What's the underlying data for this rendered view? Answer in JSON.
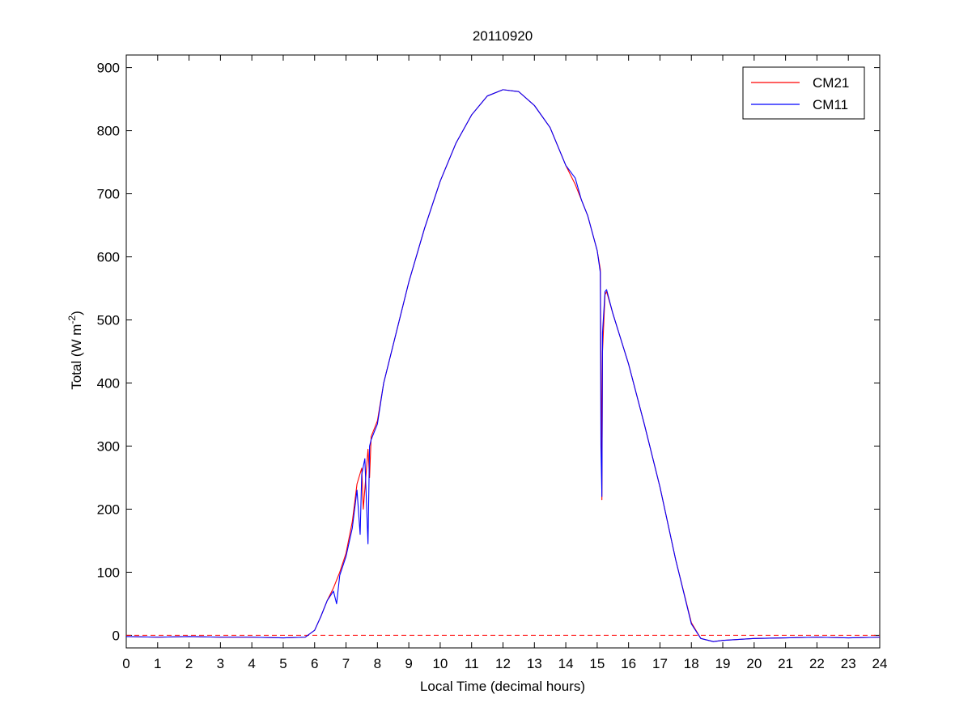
{
  "chart_data": {
    "type": "line",
    "title": "20110920",
    "xlabel": "Local Time (decimal hours)",
    "ylabel_main": "Total (W m",
    "ylabel_sup": "-2",
    "ylabel_close": ")",
    "xlim": [
      0,
      24
    ],
    "ylim": [
      -20,
      920
    ],
    "xticks": [
      0,
      1,
      2,
      3,
      4,
      5,
      6,
      7,
      8,
      9,
      10,
      11,
      12,
      13,
      14,
      15,
      16,
      17,
      18,
      19,
      20,
      21,
      22,
      23,
      24
    ],
    "yticks": [
      0,
      100,
      200,
      300,
      400,
      500,
      600,
      700,
      800,
      900
    ],
    "grid": false,
    "legend_position": "top-right",
    "reference_line": {
      "y": 0,
      "style": "dashed",
      "color": "#ff0000"
    },
    "series": [
      {
        "name": "CM21",
        "color": "#ff0000",
        "points": [
          [
            0,
            -2
          ],
          [
            1,
            -3
          ],
          [
            2,
            -2
          ],
          [
            3,
            -3
          ],
          [
            4,
            -3
          ],
          [
            5,
            -4
          ],
          [
            5.7,
            -3
          ],
          [
            6,
            8
          ],
          [
            6.2,
            30
          ],
          [
            6.4,
            55
          ],
          [
            6.6,
            75
          ],
          [
            6.8,
            100
          ],
          [
            7.0,
            130
          ],
          [
            7.2,
            180
          ],
          [
            7.35,
            240
          ],
          [
            7.5,
            265
          ],
          [
            7.55,
            200
          ],
          [
            7.7,
            295
          ],
          [
            7.75,
            250
          ],
          [
            7.8,
            315
          ],
          [
            8.0,
            340
          ],
          [
            8.2,
            400
          ],
          [
            8.5,
            460
          ],
          [
            9.0,
            560
          ],
          [
            9.5,
            645
          ],
          [
            10,
            720
          ],
          [
            10.5,
            780
          ],
          [
            11,
            825
          ],
          [
            11.5,
            855
          ],
          [
            12,
            865
          ],
          [
            12.5,
            862
          ],
          [
            13,
            840
          ],
          [
            13.5,
            805
          ],
          [
            14,
            745
          ],
          [
            14.3,
            715
          ],
          [
            14.5,
            690
          ],
          [
            14.7,
            665
          ],
          [
            15,
            610
          ],
          [
            15.1,
            580
          ],
          [
            15.13,
            380
          ],
          [
            15.15,
            215
          ],
          [
            15.17,
            450
          ],
          [
            15.25,
            540
          ],
          [
            15.3,
            545
          ],
          [
            15.5,
            510
          ],
          [
            16,
            430
          ],
          [
            16.5,
            335
          ],
          [
            17,
            235
          ],
          [
            17.5,
            120
          ],
          [
            18,
            20
          ],
          [
            18.3,
            -5
          ],
          [
            18.7,
            -10
          ],
          [
            19,
            -8
          ],
          [
            20,
            -5
          ],
          [
            21,
            -4
          ],
          [
            22,
            -3
          ],
          [
            23,
            -4
          ],
          [
            24,
            -3
          ]
        ]
      },
      {
        "name": "CM11",
        "color": "#0000ff",
        "points": [
          [
            0,
            -2
          ],
          [
            1,
            -3
          ],
          [
            2,
            -2
          ],
          [
            3,
            -3
          ],
          [
            4,
            -3
          ],
          [
            5,
            -4
          ],
          [
            5.7,
            -3
          ],
          [
            6,
            8
          ],
          [
            6.2,
            30
          ],
          [
            6.4,
            55
          ],
          [
            6.6,
            70
          ],
          [
            6.7,
            50
          ],
          [
            6.8,
            95
          ],
          [
            7.0,
            125
          ],
          [
            7.2,
            170
          ],
          [
            7.35,
            230
          ],
          [
            7.45,
            160
          ],
          [
            7.5,
            255
          ],
          [
            7.6,
            280
          ],
          [
            7.7,
            145
          ],
          [
            7.75,
            300
          ],
          [
            7.8,
            310
          ],
          [
            8.0,
            335
          ],
          [
            8.2,
            400
          ],
          [
            8.5,
            460
          ],
          [
            9.0,
            560
          ],
          [
            9.5,
            645
          ],
          [
            10,
            720
          ],
          [
            10.5,
            780
          ],
          [
            11,
            825
          ],
          [
            11.5,
            855
          ],
          [
            12,
            865
          ],
          [
            12.5,
            862
          ],
          [
            13,
            840
          ],
          [
            13.5,
            805
          ],
          [
            14,
            745
          ],
          [
            14.3,
            725
          ],
          [
            14.5,
            690
          ],
          [
            14.7,
            665
          ],
          [
            15,
            610
          ],
          [
            15.1,
            575
          ],
          [
            15.12,
            300
          ],
          [
            15.15,
            220
          ],
          [
            15.17,
            480
          ],
          [
            15.25,
            545
          ],
          [
            15.3,
            548
          ],
          [
            15.5,
            510
          ],
          [
            16,
            430
          ],
          [
            16.5,
            335
          ],
          [
            17,
            235
          ],
          [
            17.5,
            120
          ],
          [
            18,
            18
          ],
          [
            18.3,
            -5
          ],
          [
            18.7,
            -10
          ],
          [
            19,
            -8
          ],
          [
            20,
            -5
          ],
          [
            21,
            -4
          ],
          [
            22,
            -3
          ],
          [
            23,
            -4
          ],
          [
            24,
            -3
          ]
        ]
      }
    ]
  }
}
